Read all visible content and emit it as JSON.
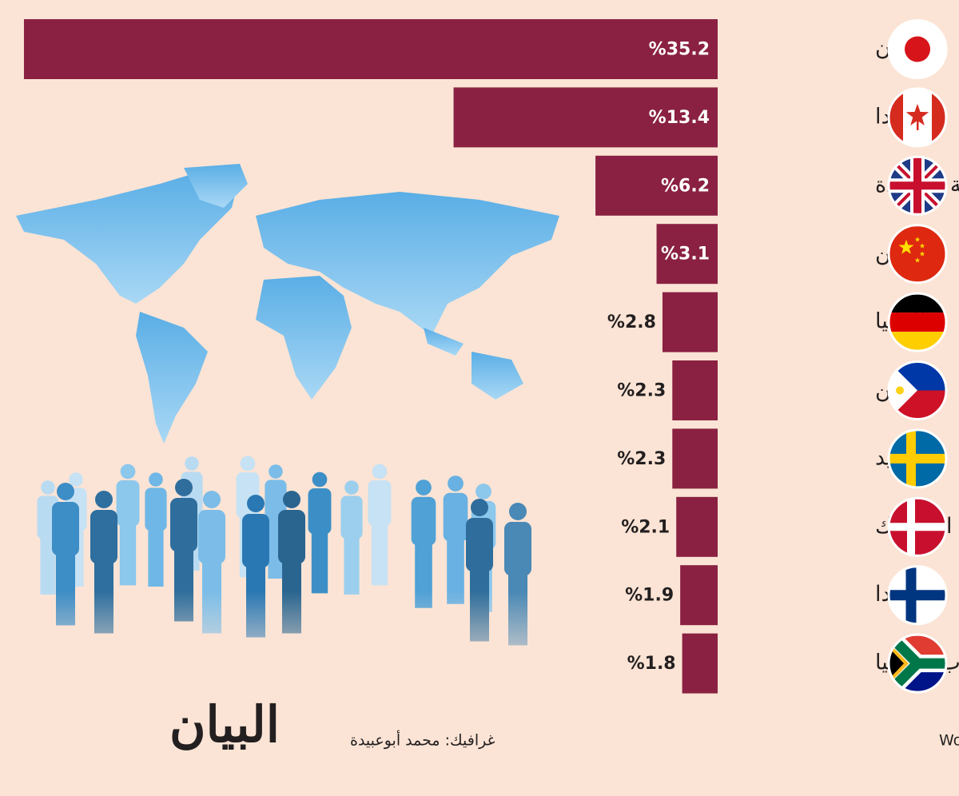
{
  "chart_data": {
    "type": "bar",
    "orientation": "horizontal",
    "categories": [
      "اليابان",
      "كندا",
      "المملكة المتحدة",
      "الصين",
      "ألمانيا",
      "الفلبين",
      "السويد",
      "الدنمارك",
      "فنلندا",
      "جنوب أفريقيا"
    ],
    "values": [
      35.2,
      13.4,
      6.2,
      3.1,
      2.8,
      2.3,
      2.3,
      2.1,
      1.9,
      1.8
    ],
    "value_labels": [
      "%35.2",
      "%13.4",
      "%6.2",
      "%3.1",
      "%2.8",
      "%2.3",
      "%2.3",
      "%2.1",
      "%1.9",
      "%1.8"
    ],
    "color": "#8a2142"
  },
  "footer": {
    "source": "المصدر: World of Statistics -Remitly",
    "credit": "غرافيك: محمد أبوعبيدة",
    "logo": "البيان"
  }
}
